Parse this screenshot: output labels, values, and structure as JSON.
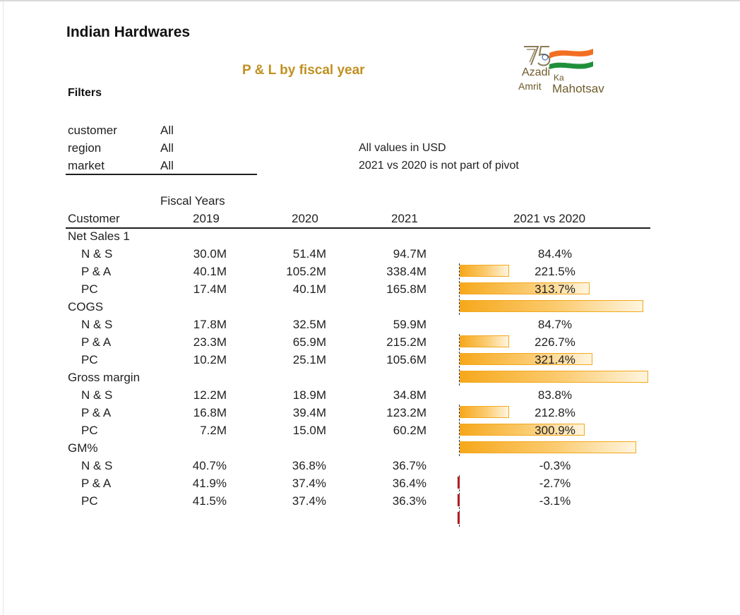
{
  "header": {
    "company": "Indian Hardwares",
    "report_title": "P & L by fiscal year",
    "filters_heading": "Filters"
  },
  "logo": {
    "line1": "Azadi",
    "line1_small": "Ka",
    "line2": "Amrit",
    "line2_big": "Mahotsav",
    "colors": {
      "saffron": "#f26f21",
      "green": "#1f8f3a",
      "text": "#6f5a2a"
    }
  },
  "filters": [
    {
      "label": "customer",
      "value": "All"
    },
    {
      "label": "region",
      "value": "All"
    },
    {
      "label": "market",
      "value": "All"
    }
  ],
  "notes": [
    "All values in USD",
    "2021 vs 2020 is not part of pivot"
  ],
  "table": {
    "fy_caption": "Fiscal Years",
    "columns": {
      "row_header": "Customer",
      "y2019": "2019",
      "y2020": "2020",
      "y2021": "2021",
      "change": "2021 vs 2020"
    },
    "sections": [
      {
        "name": "Net Sales 1",
        "rows": [
          {
            "label": "N & S",
            "y2019": "30.0M",
            "y2020": "51.4M",
            "y2021": "94.7M",
            "change": "84.4%",
            "change_value": 84.4
          },
          {
            "label": "P & A",
            "y2019": "40.1M",
            "y2020": "105.2M",
            "y2021": "338.4M",
            "change": "221.5%",
            "change_value": 221.5
          },
          {
            "label": "PC",
            "y2019": "17.4M",
            "y2020": "40.1M",
            "y2021": "165.8M",
            "change": "313.7%",
            "change_value": 313.7
          }
        ]
      },
      {
        "name": "COGS",
        "rows": [
          {
            "label": "N & S",
            "y2019": "17.8M",
            "y2020": "32.5M",
            "y2021": "59.9M",
            "change": "84.7%",
            "change_value": 84.7
          },
          {
            "label": "P & A",
            "y2019": "23.3M",
            "y2020": "65.9M",
            "y2021": "215.2M",
            "change": "226.7%",
            "change_value": 226.7
          },
          {
            "label": "PC",
            "y2019": "10.2M",
            "y2020": "25.1M",
            "y2021": "105.6M",
            "change": "321.4%",
            "change_value": 321.4
          }
        ]
      },
      {
        "name": "Gross margin",
        "rows": [
          {
            "label": "N & S",
            "y2019": "12.2M",
            "y2020": "18.9M",
            "y2021": "34.8M",
            "change": "83.8%",
            "change_value": 83.8
          },
          {
            "label": "P & A",
            "y2019": "16.8M",
            "y2020": "39.4M",
            "y2021": "123.2M",
            "change": "212.8%",
            "change_value": 212.8
          },
          {
            "label": "PC",
            "y2019": "7.2M",
            "y2020": "15.0M",
            "y2021": "60.2M",
            "change": "300.9%",
            "change_value": 300.9
          }
        ]
      },
      {
        "name": "GM%",
        "rows": [
          {
            "label": "N & S",
            "y2019": "40.7%",
            "y2020": "36.8%",
            "y2021": "36.7%",
            "change": "-0.3%",
            "change_value": -0.3
          },
          {
            "label": "P & A",
            "y2019": "41.9%",
            "y2020": "37.4%",
            "y2021": "36.4%",
            "change": "-2.7%",
            "change_value": -2.7
          },
          {
            "label": "PC",
            "y2019": "41.5%",
            "y2020": "37.4%",
            "y2021": "36.3%",
            "change": "-3.1%",
            "change_value": -3.1
          }
        ]
      }
    ]
  },
  "colors": {
    "title_gold": "#c09021",
    "bar_positive": "#f6a81c",
    "bar_negative": "#d0202a"
  }
}
